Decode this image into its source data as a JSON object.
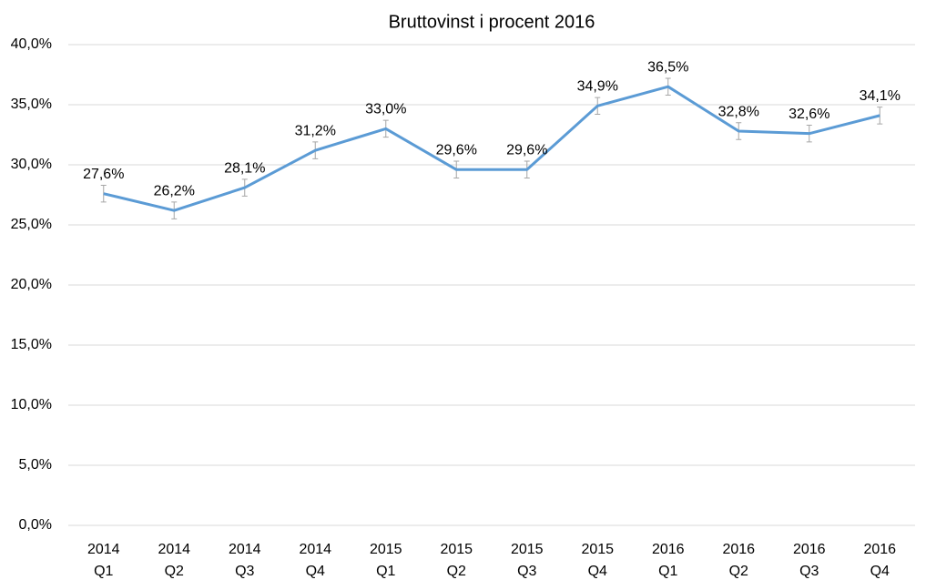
{
  "chart_data": {
    "type": "line",
    "title": "Bruttovinst i procent 2016",
    "categories": [
      [
        "2014",
        "Q1"
      ],
      [
        "2014",
        "Q2"
      ],
      [
        "2014",
        "Q3"
      ],
      [
        "2014",
        "Q4"
      ],
      [
        "2015",
        "Q1"
      ],
      [
        "2015",
        "Q2"
      ],
      [
        "2015",
        "Q3"
      ],
      [
        "2015",
        "Q4"
      ],
      [
        "2016",
        "Q1"
      ],
      [
        "2016",
        "Q2"
      ],
      [
        "2016",
        "Q3"
      ],
      [
        "2016",
        "Q4"
      ]
    ],
    "values": [
      27.6,
      26.2,
      28.1,
      31.2,
      33.0,
      29.6,
      29.6,
      34.9,
      36.5,
      32.8,
      32.6,
      34.1
    ],
    "value_labels": [
      "27,6%",
      "26,2%",
      "28,1%",
      "31,2%",
      "33,0%",
      "29,6%",
      "29,6%",
      "34,9%",
      "36,5%",
      "32,8%",
      "32,6%",
      "34,1%"
    ],
    "errors": [
      0.7,
      0.7,
      0.7,
      0.7,
      0.7,
      0.7,
      0.7,
      0.7,
      0.7,
      0.7,
      0.7,
      0.7
    ],
    "color": "#5b9bd5",
    "error_color": "#a6a6a6",
    "ylim": [
      0,
      40
    ],
    "yticks": [
      {
        "value": 0,
        "label": "0,0%"
      },
      {
        "value": 5,
        "label": "5,0%"
      },
      {
        "value": 10,
        "label": "10,0%"
      },
      {
        "value": 15,
        "label": "15,0%"
      },
      {
        "value": 20,
        "label": "20,0%"
      },
      {
        "value": 25,
        "label": "25,0%"
      },
      {
        "value": 30,
        "label": "30,0%"
      },
      {
        "value": 35,
        "label": "35,0%"
      },
      {
        "value": 40,
        "label": "40,0%"
      }
    ],
    "grid": true
  }
}
